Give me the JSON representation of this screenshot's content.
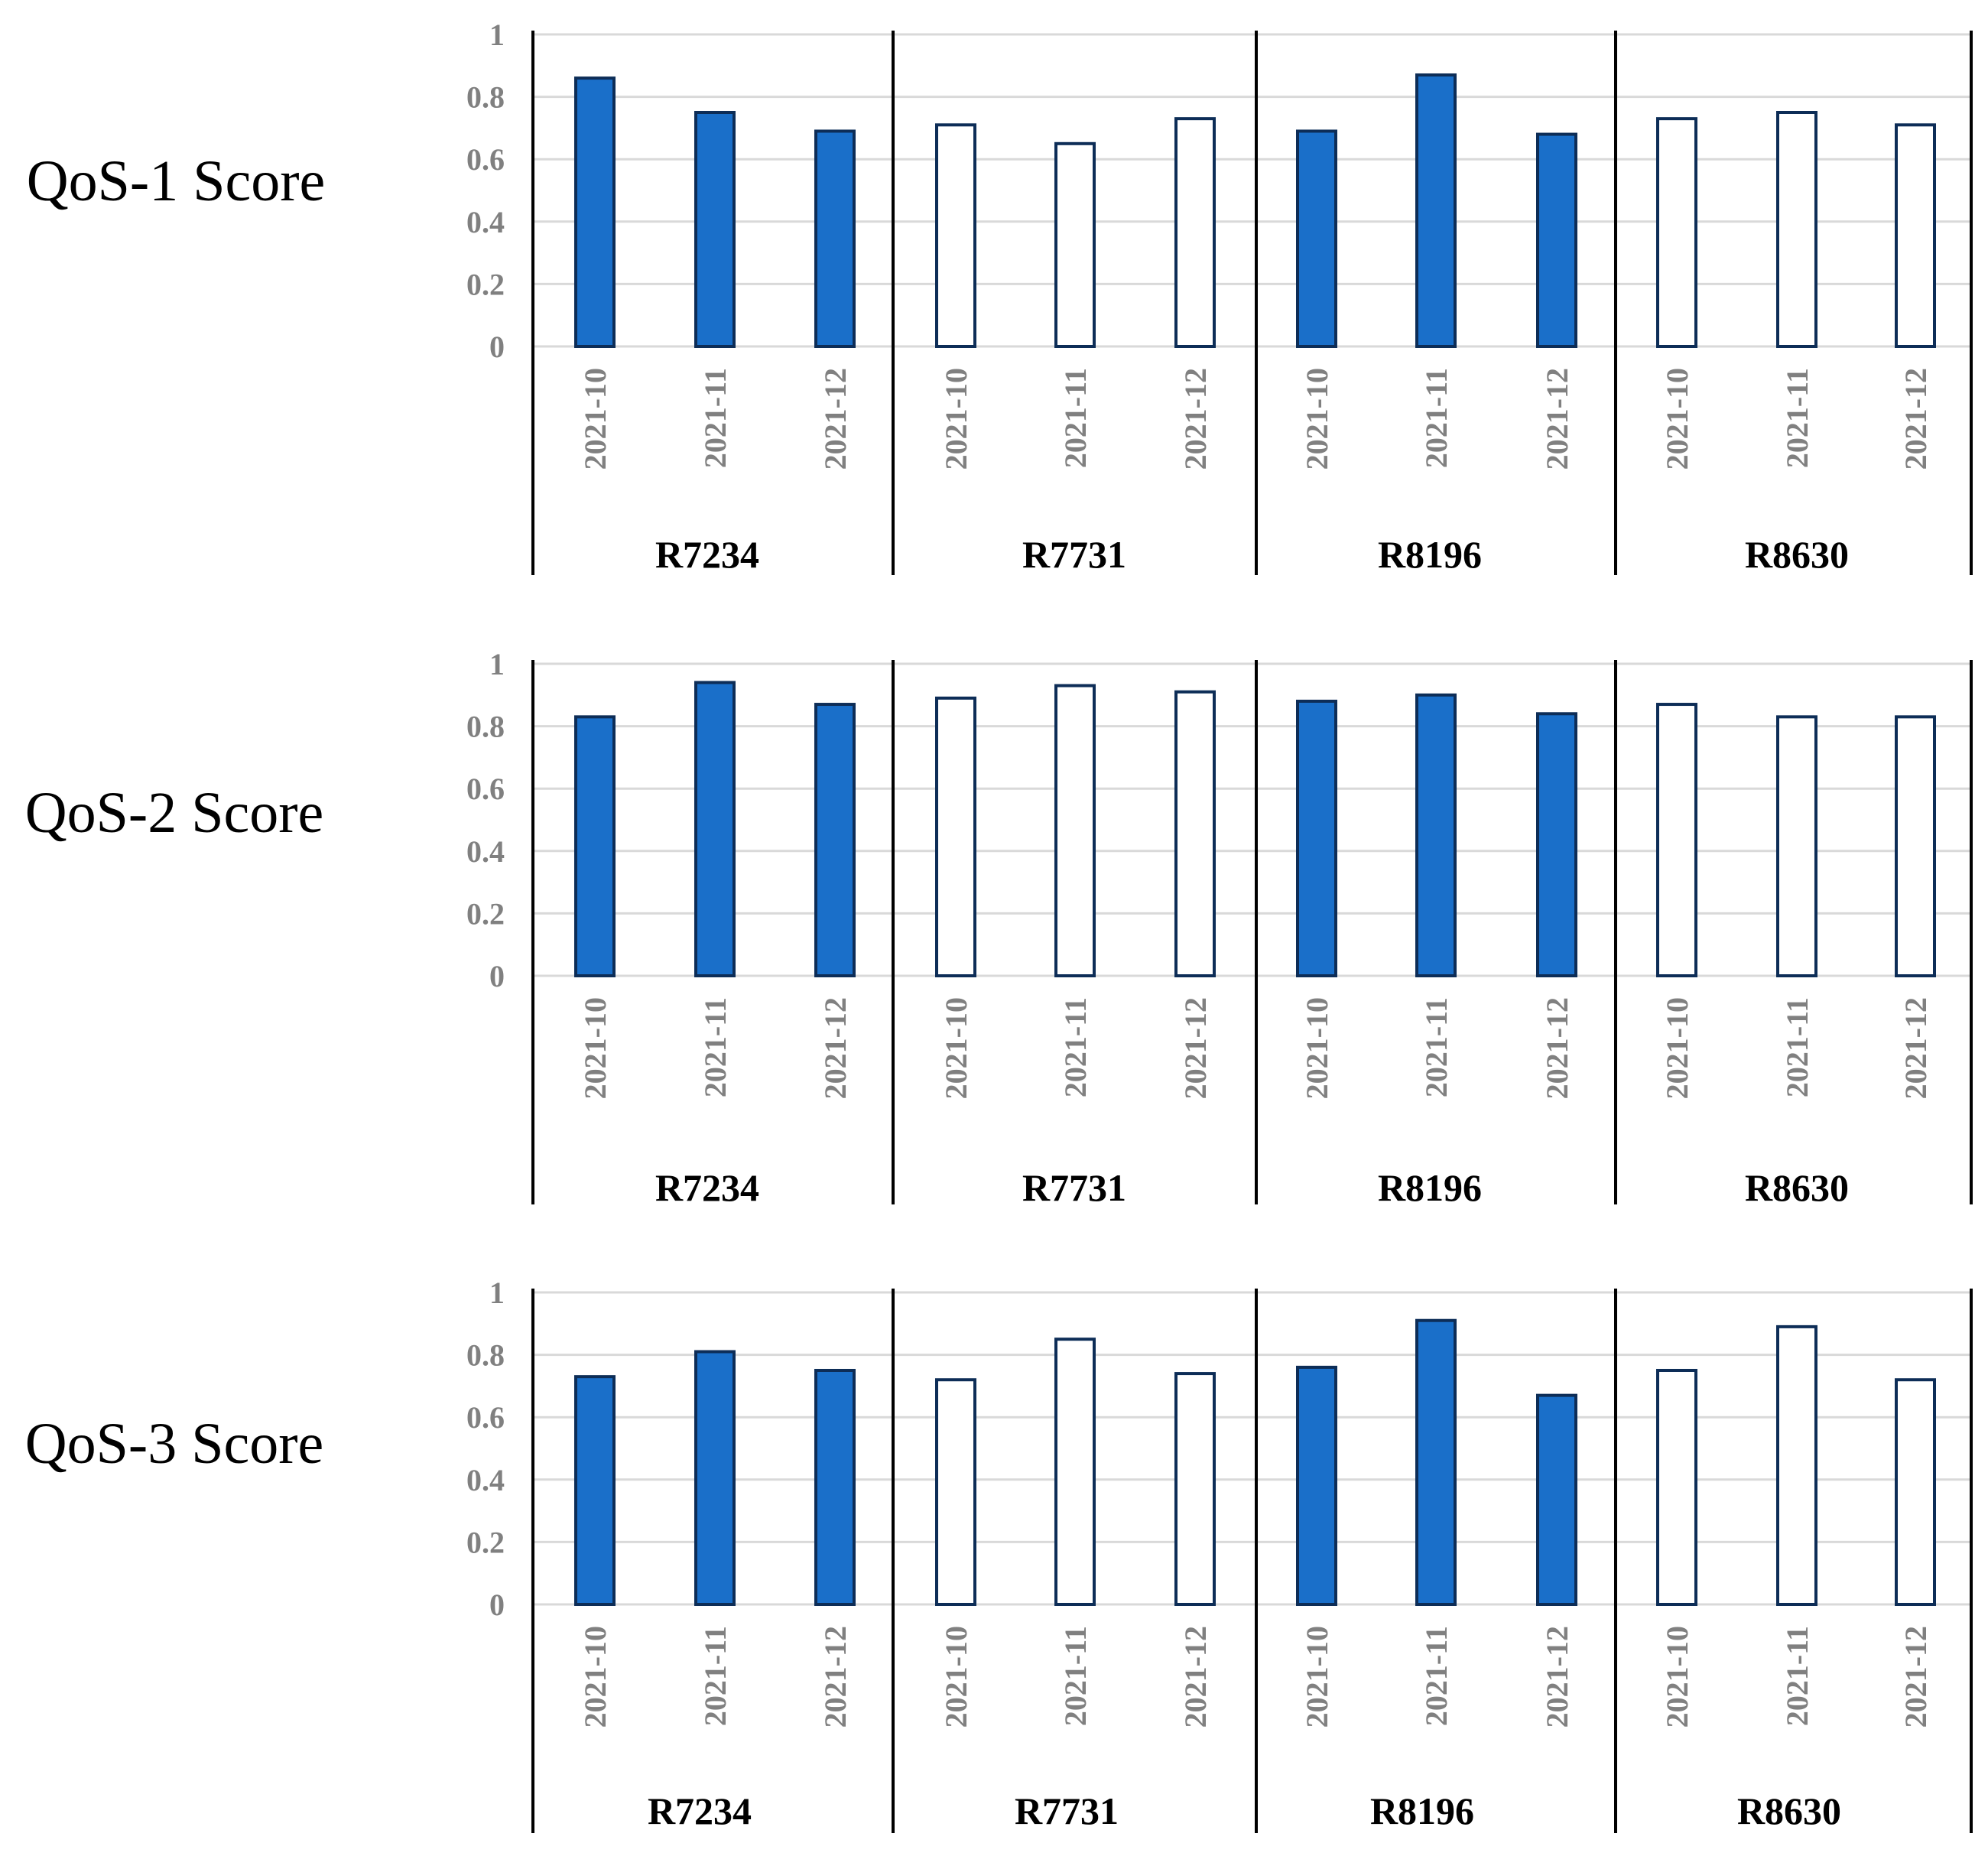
{
  "colors": {
    "bar_fill": "#1a6fc9",
    "bar_stroke": "#0d2d57",
    "bar_hollow_fill": "#ffffff",
    "gridline": "#d9d9d9",
    "axis_text": "#808080",
    "divider": "#000000"
  },
  "chart_data": [
    {
      "type": "bar",
      "title": "QoS-1 Score",
      "ylim": [
        0,
        1
      ],
      "yticks": [
        "0",
        "0.2",
        "0.4",
        "0.6",
        "0.8",
        "1"
      ],
      "groups": [
        {
          "name": "R7234",
          "style": "filled",
          "categories": [
            "2021-10",
            "2021-11",
            "2021-12"
          ],
          "values": [
            0.86,
            0.75,
            0.69
          ]
        },
        {
          "name": "R7731",
          "style": "hollow",
          "categories": [
            "2021-10",
            "2021-11",
            "2021-12"
          ],
          "values": [
            0.71,
            0.65,
            0.73
          ]
        },
        {
          "name": "R8196",
          "style": "filled",
          "categories": [
            "2021-10",
            "2021-11",
            "2021-12"
          ],
          "values": [
            0.69,
            0.87,
            0.68
          ]
        },
        {
          "name": "R8630",
          "style": "hollow",
          "categories": [
            "2021-10",
            "2021-11",
            "2021-12"
          ],
          "values": [
            0.73,
            0.75,
            0.71
          ]
        }
      ]
    },
    {
      "type": "bar",
      "title": "QoS-2 Score",
      "ylim": [
        0,
        1
      ],
      "yticks": [
        "0",
        "0.2",
        "0.4",
        "0.6",
        "0.8",
        "1"
      ],
      "groups": [
        {
          "name": "R7234",
          "style": "filled",
          "categories": [
            "2021-10",
            "2021-11",
            "2021-12"
          ],
          "values": [
            0.83,
            0.94,
            0.87
          ]
        },
        {
          "name": "R7731",
          "style": "hollow",
          "categories": [
            "2021-10",
            "2021-11",
            "2021-12"
          ],
          "values": [
            0.89,
            0.93,
            0.91
          ]
        },
        {
          "name": "R8196",
          "style": "filled",
          "categories": [
            "2021-10",
            "2021-11",
            "2021-12"
          ],
          "values": [
            0.88,
            0.9,
            0.84
          ]
        },
        {
          "name": "R8630",
          "style": "hollow",
          "categories": [
            "2021-10",
            "2021-11",
            "2021-12"
          ],
          "values": [
            0.87,
            0.83,
            0.83
          ]
        }
      ]
    },
    {
      "type": "bar",
      "title": "QoS-3 Score",
      "ylim": [
        0,
        1
      ],
      "yticks": [
        "0",
        "0.2",
        "0.4",
        "0.6",
        "0.8",
        "1"
      ],
      "groups": [
        {
          "name": "R7234",
          "style": "filled",
          "categories": [
            "2021-10",
            "2021-11",
            "2021-12"
          ],
          "values": [
            0.73,
            0.81,
            0.75
          ]
        },
        {
          "name": "R7731",
          "style": "hollow",
          "categories": [
            "2021-10",
            "2021-11",
            "2021-12"
          ],
          "values": [
            0.72,
            0.85,
            0.74
          ]
        },
        {
          "name": "R8196",
          "style": "filled",
          "categories": [
            "2021-10",
            "2021-11",
            "2021-12"
          ],
          "values": [
            0.76,
            0.91,
            0.67
          ]
        },
        {
          "name": "R8630",
          "style": "hollow",
          "categories": [
            "2021-10",
            "2021-11",
            "2021-12"
          ],
          "values": [
            0.75,
            0.89,
            0.72
          ]
        }
      ]
    }
  ]
}
